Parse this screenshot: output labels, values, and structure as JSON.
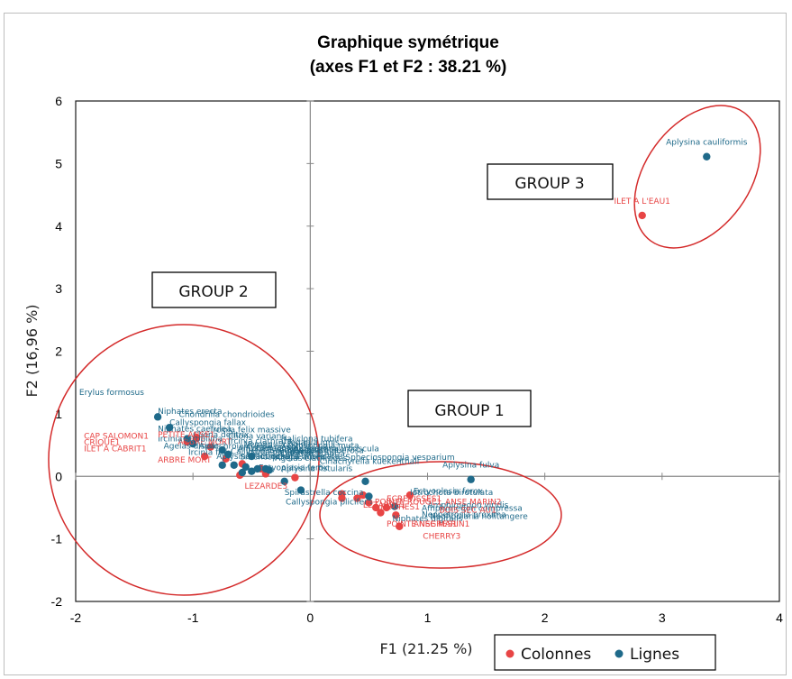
{
  "chart_data": {
    "type": "scatter",
    "title": "Graphique symétrique",
    "subtitle": "(axes F1 et F2 : 38.21 %)",
    "xlabel": "F1 (21.25 %)",
    "ylabel": "F2 (16,96 %)",
    "xlim": [
      -2,
      4
    ],
    "ylim": [
      -2,
      6
    ],
    "xticks": [
      "-2",
      "-1",
      "0",
      "1",
      "2",
      "3",
      "4"
    ],
    "yticks": [
      "-2",
      "-1",
      "0",
      "1",
      "2",
      "3",
      "4",
      "5",
      "6"
    ],
    "legend": {
      "position": "bottom-right",
      "entries": [
        "Colonnes",
        "Lignes"
      ]
    },
    "colors": {
      "Colonnes": "#e84545",
      "Lignes": "#1f6a8a",
      "ellipse": "#d42a2a",
      "axis": "#888888",
      "frame": "#000000"
    },
    "series": [
      {
        "name": "Colonnes",
        "points": [
          {
            "x": 2.83,
            "y": 4.17,
            "label": "ILET A L'EAU1"
          },
          {
            "x": -0.97,
            "y": 0.62,
            "label": ""
          },
          {
            "x": -1.05,
            "y": 0.55,
            "label": ""
          },
          {
            "x": -0.85,
            "y": 0.47,
            "label": ""
          },
          {
            "x": -0.9,
            "y": 0.32,
            "label": "ARBRE MORT"
          },
          {
            "x": -0.72,
            "y": 0.28,
            "label": ""
          },
          {
            "x": -0.58,
            "y": 0.2,
            "label": ""
          },
          {
            "x": -0.42,
            "y": 0.12,
            "label": ""
          },
          {
            "x": -0.38,
            "y": 0.04,
            "label": ""
          },
          {
            "x": -0.13,
            "y": -0.02,
            "label": ""
          },
          {
            "x": -0.6,
            "y": 0.02,
            "label": ""
          },
          {
            "x": 0.27,
            "y": -0.28,
            "label": ""
          },
          {
            "x": 0.27,
            "y": -0.35,
            "label": ""
          },
          {
            "x": 0.4,
            "y": -0.35,
            "label": ""
          },
          {
            "x": 0.45,
            "y": -0.3,
            "label": ""
          },
          {
            "x": 0.5,
            "y": -0.42,
            "label": ""
          },
          {
            "x": 0.56,
            "y": -0.5,
            "label": ""
          },
          {
            "x": 0.6,
            "y": -0.58,
            "label": ""
          },
          {
            "x": 0.65,
            "y": -0.5,
            "label": ""
          },
          {
            "x": 0.73,
            "y": -0.62,
            "label": ""
          },
          {
            "x": 0.76,
            "y": -0.8,
            "label": ""
          },
          {
            "x": 0.85,
            "y": -0.3,
            "label": ""
          }
        ]
      },
      {
        "name": "Lignes",
        "points": [
          {
            "x": 3.38,
            "y": 5.11,
            "label": "Aplysina cauliformis"
          },
          {
            "x": 1.37,
            "y": -0.05,
            "label": "Aplysina fulva"
          },
          {
            "x": -1.3,
            "y": 0.95,
            "label": ""
          },
          {
            "x": -1.2,
            "y": 0.78,
            "label": ""
          },
          {
            "x": -1.05,
            "y": 0.6,
            "label": ""
          },
          {
            "x": -1.0,
            "y": 0.52,
            "label": ""
          },
          {
            "x": -0.75,
            "y": 0.42,
            "label": ""
          },
          {
            "x": -0.7,
            "y": 0.35,
            "label": ""
          },
          {
            "x": -0.5,
            "y": 0.32,
            "label": ""
          },
          {
            "x": -0.75,
            "y": 0.18,
            "label": ""
          },
          {
            "x": -0.65,
            "y": 0.18,
            "label": ""
          },
          {
            "x": -0.55,
            "y": 0.15,
            "label": ""
          },
          {
            "x": -0.5,
            "y": 0.08,
            "label": ""
          },
          {
            "x": -0.45,
            "y": 0.12,
            "label": ""
          },
          {
            "x": -0.38,
            "y": 0.12,
            "label": ""
          },
          {
            "x": -0.35,
            "y": 0.1,
            "label": ""
          },
          {
            "x": -0.58,
            "y": 0.06,
            "label": ""
          },
          {
            "x": -0.22,
            "y": -0.08,
            "label": ""
          },
          {
            "x": -0.08,
            "y": -0.22,
            "label": ""
          },
          {
            "x": 0.47,
            "y": -0.08,
            "label": ""
          },
          {
            "x": 0.5,
            "y": -0.32,
            "label": ""
          },
          {
            "x": 0.72,
            "y": -0.48,
            "label": ""
          }
        ]
      }
    ],
    "text_labels": [
      {
        "x": 0.88,
        "y": -0.28,
        "text": "Ectyoplasia ferox"
      },
      {
        "x": -1.97,
        "y": 1.3,
        "text": "Erylus formosus",
        "size": 12
      },
      {
        "x": -1.3,
        "y": 1.0,
        "text": "Niphates erecta",
        "size": 11
      },
      {
        "x": -1.12,
        "y": 0.95,
        "text": "Chondrilla  chondrioides",
        "size": 13
      },
      {
        "x": -1.2,
        "y": 0.82,
        "text": "Callyspongia  fallax",
        "size": 10
      },
      {
        "x": -1.3,
        "y": 0.72,
        "text": "Niphates caerulea",
        "size": 10
      },
      {
        "x": -1.3,
        "y": 0.56,
        "text": "Ircinia strobilina",
        "size": 10
      },
      {
        "x": -1.25,
        "y": 0.44,
        "text": "Agelas dispar",
        "size": 10
      },
      {
        "x": -1.04,
        "y": 0.34,
        "text": "Ircinia felix",
        "size": 10
      },
      {
        "x": -0.62,
        "y": 0.4,
        "text": "Amphimedon compressa",
        "size": 10
      },
      {
        "x": -0.8,
        "y": 0.28,
        "text": "Aplysina lacunosa",
        "size": 10
      },
      {
        "x": -0.55,
        "y": 0.35,
        "text": "Ircinia campana",
        "size": 10
      },
      {
        "x": -0.2,
        "y": 0.4,
        "text": "Monanchora arbuscula",
        "size": 10
      },
      {
        "x": -0.56,
        "y": 0.47,
        "text": "Verongula rigida",
        "size": 10
      },
      {
        "x": -0.35,
        "y": 0.38,
        "text": "Svenzea zeai",
        "size": 10
      },
      {
        "x": -0.25,
        "y": 0.32,
        "text": "Dysidea etheria",
        "size": 10
      },
      {
        "x": -0.3,
        "y": 0.25,
        "text": "Agelas clathrodes",
        "size": 10
      },
      {
        "x": 0.08,
        "y": 0.2,
        "text": "Cinachyrella kuekenthali",
        "size": 10
      },
      {
        "x": 0.3,
        "y": 0.26,
        "text": "Spheciospongia vesparium",
        "size": 10
      },
      {
        "x": -0.45,
        "y": 0.28,
        "text": "Iotrochota imbricata",
        "size": 10
      },
      {
        "x": -1.0,
        "y": 0.62,
        "text": "Cliona delitrix",
        "size": 10
      },
      {
        "x": -0.7,
        "y": 0.6,
        "text": "Cliona varians",
        "size": 10
      },
      {
        "x": -0.7,
        "y": 0.52,
        "text": "Ircinia clathrata",
        "size": 10
      },
      {
        "x": -0.25,
        "y": 0.45,
        "text": "Xestospongia muta",
        "size": 10
      },
      {
        "x": -0.57,
        "y": 0.42,
        "text": "Mycale laevis",
        "size": 10
      },
      {
        "x": -0.2,
        "y": 0.5,
        "text": "Tedania ignis",
        "size": 10
      },
      {
        "x": -0.25,
        "y": 0.56,
        "text": "Haliclona tubifera",
        "size": 10
      },
      {
        "x": -0.15,
        "y": 0.37,
        "text": "Geodia gibberosa",
        "size": 10
      },
      {
        "x": -0.85,
        "y": 0.7,
        "text": "Ircinia felix massive",
        "size": 10
      },
      {
        "x": -0.95,
        "y": 0.44,
        "text": "Aiolochroia crassa",
        "size": 10
      },
      {
        "x": -0.6,
        "y": 0.27,
        "text": "Smenospongia aurea",
        "size": 10
      },
      {
        "x": -0.68,
        "y": 0.36,
        "text": "Callyspongia vaginalis",
        "size": 10
      },
      {
        "x": -0.44,
        "y": 0.1,
        "text": "Ectyoplasia ferox",
        "size": 10
      },
      {
        "x": -0.25,
        "y": 0.08,
        "text": "Aplysina fistularis",
        "size": 10
      },
      {
        "x": -0.22,
        "y": -0.3,
        "text": "Spirastrella coccina",
        "size": 10
      },
      {
        "x": -0.21,
        "y": -0.45,
        "text": "Callyspongia plicifera",
        "size": 10
      },
      {
        "x": -0.56,
        "y": -0.2,
        "text": "LEZARDE3"
      },
      {
        "x": 0.85,
        "y": -0.3,
        "text": "Iotrochota birotulata"
      },
      {
        "x": 0.95,
        "y": -0.65,
        "text": "Neopetrosia proxima"
      },
      {
        "x": 0.7,
        "y": -0.72,
        "text": "Niphates digitalis"
      },
      {
        "x": 1.02,
        "y": -0.68,
        "text": "Neofibularia nolitangere"
      },
      {
        "x": 1.0,
        "y": -0.5,
        "text": "Amphimedon viridis"
      },
      {
        "x": 0.95,
        "y": -0.55,
        "text": "Amphimedon compressa"
      },
      {
        "x": 1.15,
        "y": -0.45,
        "text": "ANSE MARIN2"
      },
      {
        "x": 1.1,
        "y": -0.58,
        "text": "BOIS SEC AU1"
      },
      {
        "x": 0.88,
        "y": -0.8,
        "text": "ANSE MARIN1"
      },
      {
        "x": 0.65,
        "y": -0.8,
        "text": "POINTE NEGRES1"
      },
      {
        "x": 0.96,
        "y": -1.0,
        "text": "CHERRY3"
      },
      {
        "x": 0.45,
        "y": -0.5,
        "text": "LEZARDE1"
      },
      {
        "x": 0.55,
        "y": -0.45,
        "text": "POINTE ROUGE1"
      },
      {
        "x": 0.65,
        "y": -0.4,
        "text": "ECREVISSES1"
      },
      {
        "x": 0.6,
        "y": -0.53,
        "text": "ROCHES1"
      },
      {
        "x": -1.93,
        "y": 0.4,
        "text": "ILET A CABRIT1"
      },
      {
        "x": -1.93,
        "y": 0.6,
        "text": "CAP SALOMON1"
      },
      {
        "x": -1.93,
        "y": 0.5,
        "text": "CRIQUE1"
      },
      {
        "x": -1.3,
        "y": 0.62,
        "text": "PETITE ANSE1"
      },
      {
        "x": -1.3,
        "y": 0.22,
        "text": "ARBRE MORT"
      }
    ]
  },
  "annotations": {
    "group1": "GROUP 1",
    "group2": "GROUP 2",
    "group3": "GROUP 3"
  }
}
